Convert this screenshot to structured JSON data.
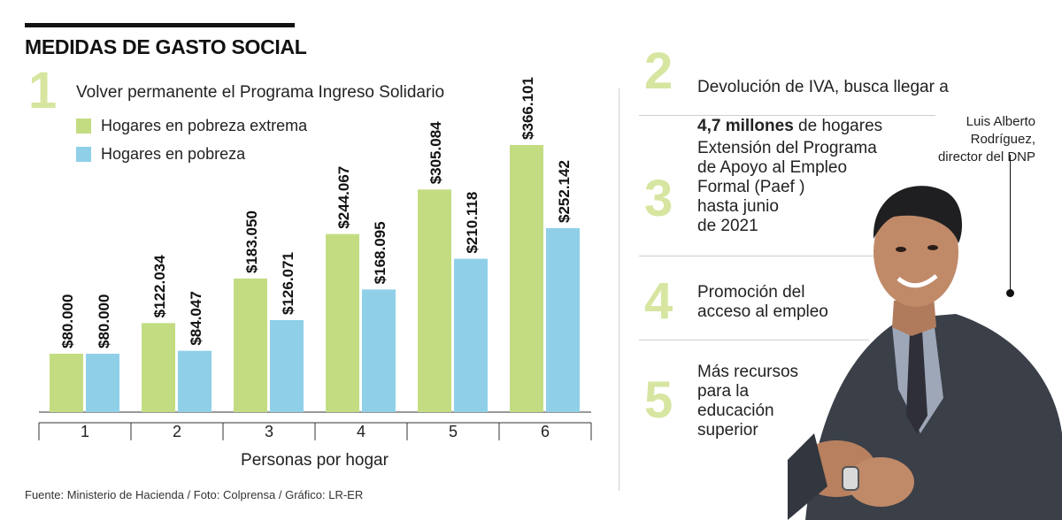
{
  "header": {
    "title": "MEDIDAS DE GASTO SOCIAL"
  },
  "measure1": {
    "number": "1",
    "text": "Volver permanente el Programa Ingreso Solidario"
  },
  "legend": [
    {
      "label": "Hogares en pobreza extrema",
      "color": "#c3dc82"
    },
    {
      "label": "Hogares en pobreza",
      "color": "#8fd0e8"
    }
  ],
  "chart_data": {
    "type": "bar",
    "categories": [
      "1",
      "2",
      "3",
      "4",
      "5",
      "6"
    ],
    "series": [
      {
        "name": "Hogares en pobreza extrema",
        "values": [
          80000,
          122034,
          183050,
          244067,
          305084,
          366101
        ],
        "labels": [
          "$80.000",
          "$122.034",
          "$183.050",
          "$244.067",
          "$305.084",
          "$366.101"
        ],
        "color": "#c3dc82"
      },
      {
        "name": "Hogares en pobreza",
        "values": [
          80000,
          84047,
          126071,
          168095,
          210118,
          252142
        ],
        "labels": [
          "$80.000",
          "$84.047",
          "$126.071",
          "$168.095",
          "$210.118",
          "$252.142"
        ],
        "color": "#8fd0e8"
      }
    ],
    "xlabel": "Personas por hogar",
    "ylabel": "",
    "ylim": [
      0,
      400000
    ]
  },
  "source": "Fuente: Ministerio de Hacienda / Foto: Colprensa / Gráfico: LR-ER",
  "measures": [
    {
      "number": "2",
      "line1": "Devolución de IVA, busca llegar a",
      "bold": "4,7 millones",
      "rest": " de hogares"
    },
    {
      "number": "3",
      "text": "Extensión del Programa\nde Apoyo al Empleo\nFormal (Paef )\nhasta junio\nde 2021"
    },
    {
      "number": "4",
      "text": "Promoción del\nacceso al empleo"
    },
    {
      "number": "5",
      "text": "Más recursos\npara la\neducación\nsuperior"
    }
  ],
  "photo": {
    "caption": "Luis Alberto\nRodríguez,\ndirector del DNP"
  }
}
